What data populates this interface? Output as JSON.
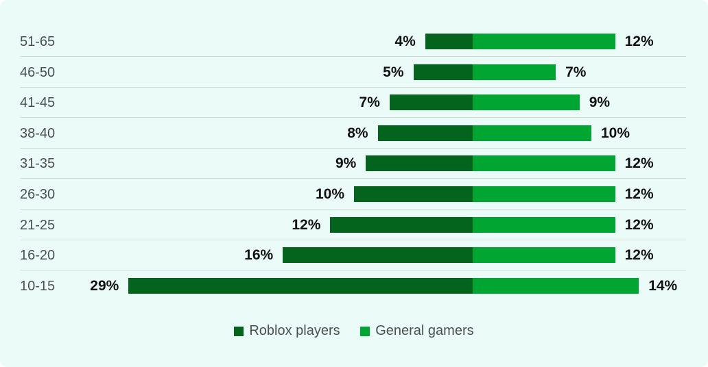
{
  "chart_data": {
    "type": "bar",
    "orientation": "horizontal-diverging",
    "title": "",
    "xlabel": "",
    "ylabel": "",
    "categories": [
      "51-65",
      "46-50",
      "41-45",
      "38-40",
      "31-35",
      "26-30",
      "21-25",
      "16-20",
      "10-15"
    ],
    "series": [
      {
        "name": "Roblox players",
        "color": "#04631c",
        "values": [
          4,
          5,
          7,
          8,
          9,
          10,
          12,
          16,
          29
        ],
        "labels": [
          "4%",
          "5%",
          "7%",
          "8%",
          "9%",
          "10%",
          "12%",
          "16%",
          "29%"
        ]
      },
      {
        "name": "General gamers",
        "color": "#00a532",
        "values": [
          12,
          7,
          9,
          10,
          12,
          12,
          12,
          12,
          14
        ],
        "labels": [
          "12%",
          "7%",
          "9%",
          "10%",
          "12%",
          "12%",
          "12%",
          "12%",
          "14%"
        ]
      }
    ],
    "grid": false,
    "legend_position": "bottom"
  },
  "legend": {
    "items": [
      {
        "label": "Roblox players",
        "color": "#04631c"
      },
      {
        "label": "General gamers",
        "color": "#00a532"
      }
    ]
  }
}
